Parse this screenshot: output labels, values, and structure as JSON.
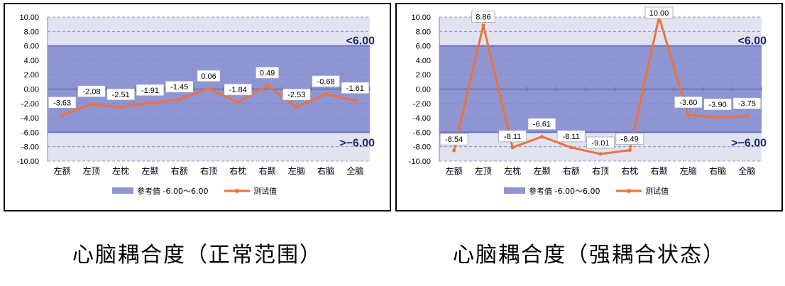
{
  "chart_data": [
    {
      "type": "line",
      "categories": [
        "左额",
        "左顶",
        "左枕",
        "左颞",
        "右额",
        "右顶",
        "右枕",
        "右颞",
        "左脑",
        "右脑",
        "全脑"
      ],
      "series": [
        {
          "name": "测试值",
          "values": [
            -3.63,
            -2.08,
            -2.51,
            -1.91,
            -1.45,
            0.06,
            -1.84,
            0.49,
            -2.53,
            -0.68,
            -1.61
          ]
        }
      ],
      "data_labels": [
        "-3.63",
        "-2.08",
        "-2.51",
        "-1.91",
        "-1.45",
        "0.06",
        "-1.84",
        "0.49",
        "-2.53",
        "-0.68",
        "-1.61"
      ],
      "reference_band": {
        "name": "参考值 -6.00～6.00",
        "min": -6,
        "max": 6
      },
      "annotations": {
        "upper": "<6.00",
        "lower": ">−6.00"
      },
      "ylim": [
        -10,
        10
      ],
      "yticks": [
        "10.00",
        "8.00",
        "6.00",
        "4.00",
        "2.00",
        "0.00",
        "-2.00",
        "-4.00",
        "-6.00",
        "-8.00",
        "-10.00"
      ],
      "legend": [
        "参考值 -6.00～6.00",
        "测试值"
      ],
      "title": "",
      "xlabel": "",
      "ylabel": ""
    },
    {
      "type": "line",
      "categories": [
        "左额",
        "左顶",
        "左枕",
        "左颞",
        "右额",
        "右顶",
        "右枕",
        "右颞",
        "左脑",
        "右脑",
        "全脑"
      ],
      "series": [
        {
          "name": "测试值",
          "values": [
            -8.54,
            8.86,
            -8.11,
            -6.61,
            -8.11,
            -9.01,
            -8.49,
            10.0,
            -3.6,
            -3.9,
            -3.75
          ]
        }
      ],
      "data_labels": [
        "-8.54",
        "8.86",
        "-8.11",
        "-6.61",
        "-8.11",
        "-9.01",
        "-8.49",
        "10.00",
        "-3.60",
        "-3.90",
        "-3.75"
      ],
      "reference_band": {
        "name": "参考值 -6.00～6.00",
        "min": -6,
        "max": 6
      },
      "annotations": {
        "upper": "<6.00",
        "lower": ">−6.00"
      },
      "ylim": [
        -10,
        10
      ],
      "yticks": [
        "10.00",
        "8.00",
        "6.00",
        "4.00",
        "2.00",
        "0.00",
        "-2.00",
        "-4.00",
        "-6.00",
        "-8.00",
        "-10.00"
      ],
      "legend": [
        "参考值 -6.00～6.00",
        "测试值"
      ],
      "title": "",
      "xlabel": "",
      "ylabel": ""
    }
  ],
  "captions": [
    "心脑耦合度（正常范围）",
    "心脑耦合度（强耦合状态）"
  ],
  "colors": {
    "band": "#8f95d3",
    "outer": "#e2e3f1",
    "line": "#f0703a",
    "label_border": "#9aa3c4",
    "annotation": "#1f2d6b"
  }
}
